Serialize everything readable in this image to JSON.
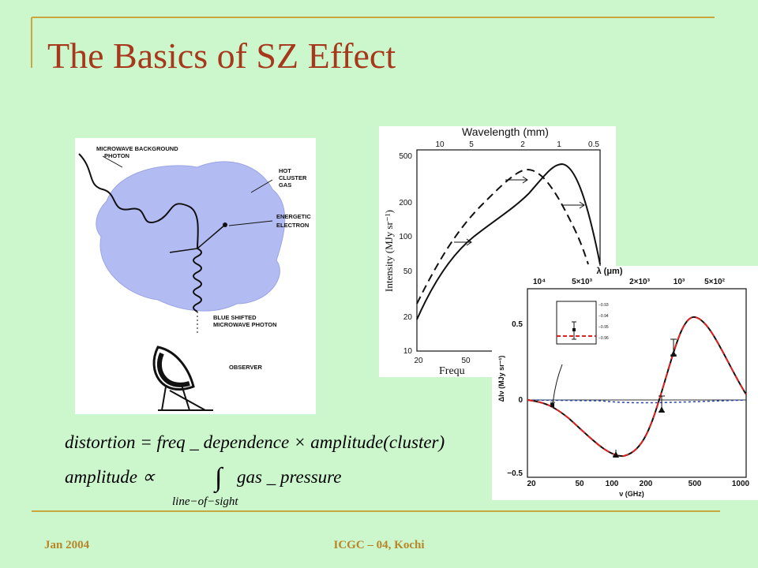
{
  "title": "The Basics of SZ Effect",
  "footer": {
    "left": "Jan 2004",
    "center": "ICGC – 04, Kochi"
  },
  "diagram": {
    "labels": [
      "MICROWAVE BACKGROUND",
      "PHOTON",
      "HOT",
      "CLUSTER",
      "GAS",
      "ENERGETIC",
      "ELECTRON",
      "BLUE SHIFTED",
      "MICROWAVE PHOTON",
      "OBSERVER"
    ]
  },
  "equations": {
    "line1": "distortion = freq _ dependence × amplitude(cluster)",
    "line2": "amplitude ∝",
    "integrand": "gas _ pressure",
    "subscript": "line−of−sight"
  },
  "plot1": {
    "top_axis_label": "Wavelength (mm)",
    "top_ticks": [
      "10",
      "5",
      "2",
      "1",
      "0.5"
    ],
    "y_label": "Intensity (MJy sr⁻¹)",
    "y_ticks": [
      "500",
      "200",
      "100",
      "50",
      "20",
      "10"
    ],
    "x_ticks": [
      "20",
      "50"
    ],
    "x_label": "Frequ"
  },
  "plot2": {
    "top_axis_label": "λ (μm)",
    "top_ticks": [
      "10⁴",
      "5×10³",
      "2×10³",
      "10³",
      "5×10²"
    ],
    "y_label": "ΔIν (MJy sr⁻¹)",
    "y_ticks": [
      "0.5",
      "0",
      "−0.5"
    ],
    "x_ticks": [
      "20",
      "50",
      "100",
      "200",
      "500",
      "1000"
    ],
    "x_label": "ν (GHz)",
    "inset_ticks": [
      "−0.93",
      "−0.94",
      "−0.95",
      "−0.96"
    ]
  }
}
